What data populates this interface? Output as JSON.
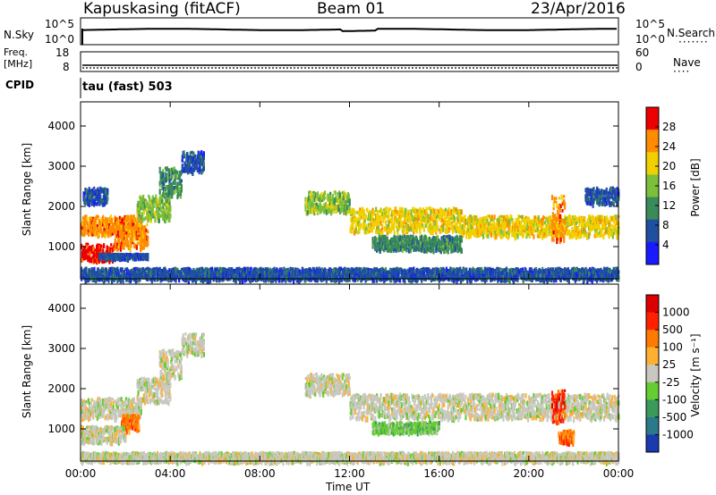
{
  "header": {
    "station": "Kapuskasing (fitACF)",
    "beam": "Beam 01",
    "date": "23/Apr/2016"
  },
  "sky_panel": {
    "left_label": "N.Sky",
    "right_label": "N.Search",
    "tick_top": "10^5",
    "tick_bottom": "10^0"
  },
  "freq_panel": {
    "left_label_1": "Freq.",
    "left_label_2": "[MHz]",
    "left_tick_top": "18",
    "left_tick_bottom": "8",
    "right_label": "Nave",
    "right_tick_top": "60",
    "right_tick_bottom": "0"
  },
  "cpid_panel": {
    "left_label": "CPID",
    "value": "tau (fast) 503"
  },
  "chart_data": [
    {
      "type": "heatmap",
      "name": "power",
      "ylabel": "Slant Range [km]",
      "y_ticks": [
        "1000",
        "2000",
        "3000",
        "4000"
      ],
      "ylim": [
        200,
        4600
      ],
      "x_ticks": [
        "00:00",
        "04:00",
        "08:00",
        "12:00",
        "16:00",
        "20:00",
        "00:00"
      ],
      "xlim_hours": [
        0,
        24
      ],
      "colorbar": {
        "label": "Power [dB]",
        "ticks": [
          "4",
          "8",
          "12",
          "16",
          "20",
          "24",
          "28"
        ],
        "colors": [
          "#1a1aff",
          "#1f4fa0",
          "#3a8a5a",
          "#7bbf3a",
          "#f0d000",
          "#ff8c00",
          "#ee0000"
        ]
      },
      "bands": [
        {
          "t0": 0.0,
          "t1": 2.7,
          "r0": 1350,
          "r1": 1800,
          "level": 5
        },
        {
          "t0": 0.0,
          "t1": 1.5,
          "r0": 700,
          "r1": 1100,
          "level": 6
        },
        {
          "t0": 1.5,
          "t1": 3.0,
          "r0": 1000,
          "r1": 1600,
          "level": 5
        },
        {
          "t0": 2.5,
          "t1": 4.0,
          "r0": 1700,
          "r1": 2300,
          "level": 3
        },
        {
          "t0": 3.5,
          "t1": 4.5,
          "r0": 2300,
          "r1": 3000,
          "level": 2
        },
        {
          "t0": 4.5,
          "t1": 5.5,
          "r0": 2900,
          "r1": 3400,
          "level": 1
        },
        {
          "t0": 0.1,
          "t1": 1.2,
          "r0": 2100,
          "r1": 2500,
          "level": 1
        },
        {
          "t0": 10.0,
          "t1": 12.0,
          "r0": 1900,
          "r1": 2400,
          "level": 3
        },
        {
          "t0": 12.0,
          "t1": 17.0,
          "r0": 1400,
          "r1": 2000,
          "level": 4
        },
        {
          "t0": 17.0,
          "t1": 24.0,
          "r0": 1300,
          "r1": 1800,
          "level": 4
        },
        {
          "t0": 21.0,
          "t1": 21.6,
          "r0": 1200,
          "r1": 2300,
          "level": 5
        },
        {
          "t0": 22.5,
          "t1": 24.0,
          "r0": 2100,
          "r1": 2500,
          "level": 1
        },
        {
          "t0": 13.0,
          "t1": 17.0,
          "r0": 950,
          "r1": 1300,
          "level": 2
        },
        {
          "t0": 0.8,
          "t1": 3.0,
          "r0": 750,
          "r1": 850,
          "level": 1
        },
        {
          "t0": 0.0,
          "t1": 24.0,
          "r0": 220,
          "r1": 500,
          "level": 1
        }
      ]
    },
    {
      "type": "heatmap",
      "name": "velocity",
      "ylabel": "Slant Range [km]",
      "y_ticks": [
        "1000",
        "2000",
        "3000",
        "4000"
      ],
      "ylim": [
        200,
        4600
      ],
      "xlabel": "Time UT",
      "x_ticks": [
        "00:00",
        "04:00",
        "08:00",
        "12:00",
        "16:00",
        "20:00",
        "00:00"
      ],
      "xlim_hours": [
        0,
        24
      ],
      "colorbar": {
        "label": "Velocity [m s⁻¹]",
        "ticks": [
          "1000",
          "500",
          "100",
          "25",
          "-25",
          "-100",
          "-500",
          "-1000"
        ],
        "colors": [
          "#1a3ab0",
          "#2a7a8a",
          "#3a9a5a",
          "#66cc33",
          "#c8c8c0",
          "#ffb030",
          "#ff7a00",
          "#ff2000",
          "#dd0000"
        ]
      },
      "bands": [
        {
          "t0": 0.0,
          "t1": 2.7,
          "r0": 1300,
          "r1": 1800,
          "level": 4
        },
        {
          "t0": 1.8,
          "t1": 2.6,
          "r0": 1000,
          "r1": 1400,
          "level": 6
        },
        {
          "t0": 0.0,
          "t1": 2.0,
          "r0": 700,
          "r1": 1100,
          "level": 4
        },
        {
          "t0": 2.5,
          "t1": 4.0,
          "r0": 1700,
          "r1": 2300,
          "level": 4
        },
        {
          "t0": 3.5,
          "t1": 4.5,
          "r0": 2300,
          "r1": 3000,
          "level": 4
        },
        {
          "t0": 4.5,
          "t1": 5.5,
          "r0": 2900,
          "r1": 3400,
          "level": 4
        },
        {
          "t0": 10.0,
          "t1": 12.0,
          "r0": 1900,
          "r1": 2400,
          "level": 4
        },
        {
          "t0": 12.0,
          "t1": 24.0,
          "r0": 1300,
          "r1": 1900,
          "level": 4
        },
        {
          "t0": 21.0,
          "t1": 21.6,
          "r0": 1200,
          "r1": 2000,
          "level": 7
        },
        {
          "t0": 21.3,
          "t1": 22.0,
          "r0": 700,
          "r1": 1000,
          "level": 6
        },
        {
          "t0": 13.0,
          "t1": 16.0,
          "r0": 950,
          "r1": 1200,
          "level": 3
        },
        {
          "t0": 0.0,
          "t1": 24.0,
          "r0": 220,
          "r1": 450,
          "level": 4
        }
      ]
    }
  ]
}
